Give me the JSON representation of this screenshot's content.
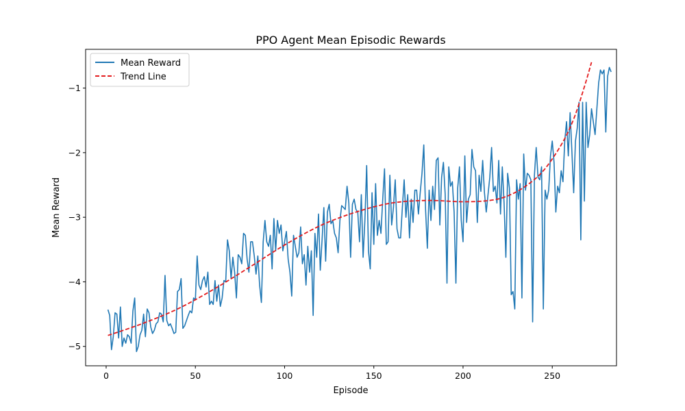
{
  "chart_data": {
    "type": "line",
    "title": "PPO Agent Mean Episodic Rewards",
    "xlabel": "Episode",
    "ylabel": "Mean Reward",
    "xlim": [
      -11.5,
      286
    ],
    "ylim": [
      -5.3,
      -0.4
    ],
    "xticks": [
      0,
      50,
      100,
      150,
      200,
      250
    ],
    "yticks": [
      -5,
      -4,
      -3,
      -2,
      -1
    ],
    "ytick_labels": [
      "−5",
      "−4",
      "−3",
      "−2",
      "−1"
    ],
    "xtick_labels": [
      "0",
      "50",
      "100",
      "150",
      "200",
      "250"
    ],
    "grid": false,
    "legend_position": "upper left",
    "colors": {
      "mean_reward": "#1f77b4",
      "trend_line": "#e31a1c"
    },
    "series": [
      {
        "name": "Mean Reward",
        "style": "solid",
        "x_start": 1,
        "x_step": 1,
        "y": [
          -4.43,
          -4.52,
          -5.05,
          -4.85,
          -4.48,
          -4.5,
          -4.87,
          -4.39,
          -5.0,
          -4.87,
          -4.95,
          -4.82,
          -4.85,
          -4.95,
          -4.45,
          -4.25,
          -5.08,
          -5.0,
          -4.82,
          -4.75,
          -4.5,
          -4.85,
          -4.42,
          -4.48,
          -4.7,
          -4.8,
          -4.75,
          -4.65,
          -4.62,
          -4.48,
          -4.5,
          -4.62,
          -3.9,
          -4.6,
          -4.68,
          -4.65,
          -4.72,
          -4.8,
          -4.78,
          -4.15,
          -4.12,
          -3.95,
          -4.72,
          -4.68,
          -4.6,
          -4.52,
          -4.45,
          -4.48,
          -4.25,
          -4.28,
          -3.6,
          -4.05,
          -4.12,
          -3.98,
          -3.92,
          -4.08,
          -3.85,
          -4.35,
          -4.3,
          -4.35,
          -3.98,
          -4.3,
          -4.05,
          -4.38,
          -4.25,
          -3.98,
          -4.0,
          -3.35,
          -3.52,
          -3.95,
          -3.62,
          -3.85,
          -4.25,
          -3.58,
          -3.62,
          -3.72,
          -3.25,
          -3.28,
          -3.65,
          -3.85,
          -3.38,
          -3.38,
          -3.6,
          -3.88,
          -3.6,
          -4.05,
          -4.32,
          -3.38,
          -3.05,
          -3.38,
          -3.45,
          -3.28,
          -3.8,
          -3.02,
          -3.52,
          -3.05,
          -3.25,
          -3.12,
          -3.52,
          -3.38,
          -3.22,
          -3.65,
          -3.85,
          -4.22,
          -3.28,
          -3.45,
          -3.62,
          -3.55,
          -3.15,
          -3.72,
          -3.58,
          -4.05,
          -3.45,
          -3.85,
          -3.52,
          -4.52,
          -3.25,
          -3.62,
          -2.95,
          -3.82,
          -3.35,
          -2.85,
          -3.68,
          -2.92,
          -2.8,
          -3.1,
          -3.05,
          -3.25,
          -3.32,
          -3.55,
          -3.05,
          -2.82,
          -2.85,
          -2.88,
          -2.52,
          -2.78,
          -3.62,
          -2.8,
          -2.72,
          -2.88,
          -2.92,
          -3.38,
          -2.65,
          -3.62,
          -3.05,
          -2.2,
          -3.52,
          -3.8,
          -2.62,
          -3.42,
          -2.48,
          -3.28,
          -3.05,
          -3.25,
          -2.72,
          -2.25,
          -3.42,
          -3.38,
          -2.35,
          -3.12,
          -2.85,
          -2.42,
          -3.18,
          -3.32,
          -3.32,
          -2.85,
          -2.42,
          -3.0,
          -2.65,
          -3.32,
          -2.72,
          -3.08,
          -2.58,
          -2.58,
          -2.95,
          -2.62,
          -2.32,
          -1.88,
          -2.88,
          -3.48,
          -2.58,
          -3.05,
          -2.52,
          -2.88,
          -2.12,
          -2.08,
          -3.12,
          -2.38,
          -2.15,
          -2.65,
          -4.02,
          -2.22,
          -2.52,
          -2.45,
          -2.92,
          -4.02,
          -2.55,
          -2.22,
          -3.05,
          -3.38,
          -2.05,
          -3.08,
          -2.72,
          -2.65,
          -1.95,
          -2.22,
          -2.28,
          -3.08,
          -2.35,
          -2.6,
          -2.12,
          -2.62,
          -2.92,
          -2.65,
          -2.38,
          -1.92,
          -2.6,
          -2.52,
          -2.78,
          -2.12,
          -2.95,
          -2.22,
          -2.78,
          -3.62,
          -2.32,
          -2.55,
          -4.2,
          -4.15,
          -4.42,
          -2.42,
          -2.72,
          -2.48,
          -4.25,
          -2.02,
          -2.58,
          -2.32,
          -2.35,
          -2.42,
          -4.62,
          -2.35,
          -1.92,
          -2.38,
          -2.42,
          -2.22,
          -4.42,
          -2.58,
          -2.72,
          -2.58,
          -2.05,
          -1.82,
          -2.15,
          -2.92,
          -2.52,
          -2.62,
          -2.28,
          -2.45,
          -1.82,
          -1.52,
          -2.05,
          -1.38,
          -1.98,
          -2.62,
          -1.82,
          -1.62,
          -1.22,
          -3.35,
          -1.22,
          -2.75,
          -1.22,
          -1.92,
          -1.72,
          -1.32,
          -1.52,
          -1.72,
          -1.32,
          -0.92,
          -0.72,
          -0.78,
          -0.72,
          -1.68,
          -0.82,
          -0.68,
          -0.75
        ]
      },
      {
        "name": "Trend Line",
        "style": "dashed",
        "x": [
          1,
          20,
          40,
          60,
          80,
          100,
          120,
          140,
          160,
          180,
          200,
          215,
          225,
          235,
          245,
          255,
          262,
          268,
          272
        ],
        "y": [
          -4.83,
          -4.65,
          -4.42,
          -4.12,
          -3.78,
          -3.43,
          -3.13,
          -2.92,
          -2.78,
          -2.74,
          -2.76,
          -2.74,
          -2.67,
          -2.52,
          -2.28,
          -1.88,
          -1.48,
          -0.98,
          -0.6
        ]
      }
    ]
  }
}
